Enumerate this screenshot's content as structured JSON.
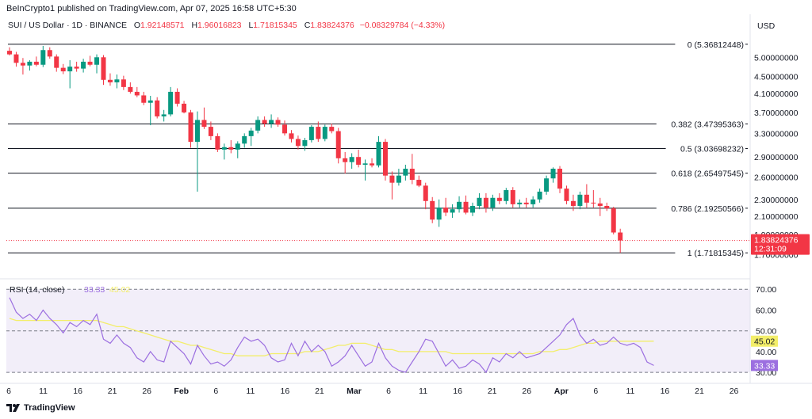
{
  "header": {
    "published_line": "BeInCrypto1 published on TradingView.com, Apr 07, 2025 16:58 UTC+5:30"
  },
  "legend": {
    "symbol": "SUI / US Dollar · 1D · BINANCE",
    "open_label": "O",
    "open": "1.92148571",
    "high_label": "H",
    "high": "1.96016823",
    "low_label": "L",
    "low": "1.71815345",
    "close_label": "C",
    "close": "1.83824376",
    "change": "−0.08329784 (−4.33%)"
  },
  "footer": {
    "brand": "TradingView"
  },
  "colors": {
    "up": "#089981",
    "down": "#F23645",
    "rsi_line": "#9C6FE0",
    "rsi_ma": "#F3EE6A",
    "rsi_band": "#EDE7F6",
    "fib_line": "#131722"
  },
  "chart_data": [
    {
      "type": "candlestick",
      "title": "SUI / US Dollar · 1D · BINANCE",
      "currency": "USD",
      "yscale": "log",
      "ylim": [
        1.55,
        5.75
      ],
      "y_ticks": [
        "5.00000000",
        "4.50000000",
        "4.10000000",
        "3.70000000",
        "3.30000000",
        "2.90000000",
        "2.60000000",
        "2.30000000",
        "2.10000000",
        "1.90000000",
        "1.70000000"
      ],
      "x_ticks": [
        "6",
        "11",
        "16",
        "21",
        "26",
        "Feb",
        "6",
        "11",
        "16",
        "21",
        "Mar",
        "6",
        "11",
        "16",
        "21",
        "26",
        "Apr",
        "6",
        "11",
        "16",
        "21",
        "26"
      ],
      "x_range": [
        "2025-01-06",
        "2025-04-26"
      ],
      "fib_levels": [
        {
          "ratio": 0,
          "price": 5.36812448,
          "label": "0 (5.36812448)"
        },
        {
          "ratio": 0.382,
          "price": 3.47395363,
          "label": "0.382 (3.47395363)"
        },
        {
          "ratio": 0.5,
          "price": 3.03698232,
          "label": "0.5 (3.03698232)"
        },
        {
          "ratio": 0.618,
          "price": 2.65497545,
          "label": "0.618 (2.65497545)"
        },
        {
          "ratio": 0.786,
          "price": 2.19250566,
          "label": "0.786 (2.19250566)"
        },
        {
          "ratio": 1,
          "price": 1.71815345,
          "label": "1 (1.71815345)"
        }
      ],
      "last_price": {
        "value": 1.83824376,
        "label": "1.83824376",
        "countdown": "12:31:09"
      },
      "candles": [
        {
          "date": "2025-01-06",
          "o": 5.18,
          "h": 5.28,
          "l": 5.05,
          "c": 5.08
        },
        {
          "date": "2025-01-07",
          "o": 5.08,
          "h": 5.15,
          "l": 4.75,
          "c": 4.85
        },
        {
          "date": "2025-01-08",
          "o": 4.85,
          "h": 4.98,
          "l": 4.55,
          "c": 4.78
        },
        {
          "date": "2025-01-09",
          "o": 4.78,
          "h": 4.92,
          "l": 4.65,
          "c": 4.88
        },
        {
          "date": "2025-01-10",
          "o": 4.88,
          "h": 5.02,
          "l": 4.76,
          "c": 4.8
        },
        {
          "date": "2025-01-11",
          "o": 4.8,
          "h": 5.32,
          "l": 4.74,
          "c": 5.2
        },
        {
          "date": "2025-01-12",
          "o": 5.2,
          "h": 5.28,
          "l": 4.96,
          "c": 5.02
        },
        {
          "date": "2025-01-13",
          "o": 5.02,
          "h": 5.08,
          "l": 4.62,
          "c": 4.72
        },
        {
          "date": "2025-01-14",
          "o": 4.72,
          "h": 4.82,
          "l": 4.56,
          "c": 4.63
        },
        {
          "date": "2025-01-15",
          "o": 4.63,
          "h": 4.92,
          "l": 4.22,
          "c": 4.75
        },
        {
          "date": "2025-01-16",
          "o": 4.75,
          "h": 4.88,
          "l": 4.62,
          "c": 4.7
        },
        {
          "date": "2025-01-17",
          "o": 4.7,
          "h": 4.96,
          "l": 4.6,
          "c": 4.88
        },
        {
          "date": "2025-01-18",
          "o": 4.88,
          "h": 5.04,
          "l": 4.76,
          "c": 4.8
        },
        {
          "date": "2025-01-19",
          "o": 4.8,
          "h": 5.08,
          "l": 4.58,
          "c": 5.0
        },
        {
          "date": "2025-01-20",
          "o": 5.0,
          "h": 5.06,
          "l": 4.3,
          "c": 4.42
        },
        {
          "date": "2025-01-21",
          "o": 4.42,
          "h": 4.58,
          "l": 4.28,
          "c": 4.36
        },
        {
          "date": "2025-01-22",
          "o": 4.36,
          "h": 4.55,
          "l": 4.22,
          "c": 4.43
        },
        {
          "date": "2025-01-23",
          "o": 4.43,
          "h": 4.52,
          "l": 4.18,
          "c": 4.25
        },
        {
          "date": "2025-01-24",
          "o": 4.25,
          "h": 4.36,
          "l": 4.1,
          "c": 4.14
        },
        {
          "date": "2025-01-25",
          "o": 4.14,
          "h": 4.25,
          "l": 4.02,
          "c": 4.06
        },
        {
          "date": "2025-01-26",
          "o": 4.06,
          "h": 4.14,
          "l": 3.85,
          "c": 3.9
        },
        {
          "date": "2025-01-27",
          "o": 3.9,
          "h": 4.05,
          "l": 3.45,
          "c": 3.95
        },
        {
          "date": "2025-01-28",
          "o": 3.95,
          "h": 4.02,
          "l": 3.58,
          "c": 3.62
        },
        {
          "date": "2025-01-29",
          "o": 3.62,
          "h": 3.75,
          "l": 3.52,
          "c": 3.66
        },
        {
          "date": "2025-01-30",
          "o": 3.66,
          "h": 4.25,
          "l": 3.62,
          "c": 4.14
        },
        {
          "date": "2025-01-31",
          "o": 4.14,
          "h": 4.22,
          "l": 3.82,
          "c": 3.88
        },
        {
          "date": "2025-02-01",
          "o": 3.88,
          "h": 3.94,
          "l": 3.68,
          "c": 3.7
        },
        {
          "date": "2025-02-02",
          "o": 3.7,
          "h": 3.75,
          "l": 3.05,
          "c": 3.15
        },
        {
          "date": "2025-02-03",
          "o": 3.15,
          "h": 3.72,
          "l": 2.4,
          "c": 3.55
        },
        {
          "date": "2025-02-04",
          "o": 3.55,
          "h": 3.8,
          "l": 3.38,
          "c": 3.42
        },
        {
          "date": "2025-02-05",
          "o": 3.42,
          "h": 3.52,
          "l": 3.18,
          "c": 3.25
        },
        {
          "date": "2025-02-06",
          "o": 3.25,
          "h": 3.3,
          "l": 2.98,
          "c": 3.02
        },
        {
          "date": "2025-02-07",
          "o": 3.02,
          "h": 3.12,
          "l": 2.86,
          "c": 3.06
        },
        {
          "date": "2025-02-08",
          "o": 3.06,
          "h": 3.18,
          "l": 2.96,
          "c": 3.02
        },
        {
          "date": "2025-02-09",
          "o": 3.02,
          "h": 3.16,
          "l": 2.88,
          "c": 3.12
        },
        {
          "date": "2025-02-10",
          "o": 3.12,
          "h": 3.3,
          "l": 3.05,
          "c": 3.25
        },
        {
          "date": "2025-02-11",
          "o": 3.25,
          "h": 3.4,
          "l": 3.08,
          "c": 3.35
        },
        {
          "date": "2025-02-12",
          "o": 3.35,
          "h": 3.62,
          "l": 3.3,
          "c": 3.55
        },
        {
          "date": "2025-02-13",
          "o": 3.55,
          "h": 3.62,
          "l": 3.42,
          "c": 3.48
        },
        {
          "date": "2025-02-14",
          "o": 3.48,
          "h": 3.66,
          "l": 3.4,
          "c": 3.55
        },
        {
          "date": "2025-02-15",
          "o": 3.55,
          "h": 3.6,
          "l": 3.42,
          "c": 3.46
        },
        {
          "date": "2025-02-16",
          "o": 3.46,
          "h": 3.54,
          "l": 3.26,
          "c": 3.3
        },
        {
          "date": "2025-02-17",
          "o": 3.3,
          "h": 3.36,
          "l": 3.14,
          "c": 3.2
        },
        {
          "date": "2025-02-18",
          "o": 3.2,
          "h": 3.26,
          "l": 3.02,
          "c": 3.08
        },
        {
          "date": "2025-02-19",
          "o": 3.08,
          "h": 3.22,
          "l": 3.0,
          "c": 3.18
        },
        {
          "date": "2025-02-20",
          "o": 3.18,
          "h": 3.45,
          "l": 3.14,
          "c": 3.42
        },
        {
          "date": "2025-02-21",
          "o": 3.42,
          "h": 3.52,
          "l": 3.15,
          "c": 3.2
        },
        {
          "date": "2025-02-22",
          "o": 3.2,
          "h": 3.46,
          "l": 3.16,
          "c": 3.42
        },
        {
          "date": "2025-02-23",
          "o": 3.42,
          "h": 3.48,
          "l": 3.3,
          "c": 3.34
        },
        {
          "date": "2025-02-24",
          "o": 3.34,
          "h": 3.4,
          "l": 2.8,
          "c": 2.88
        },
        {
          "date": "2025-02-25",
          "o": 2.88,
          "h": 2.98,
          "l": 2.65,
          "c": 2.82
        },
        {
          "date": "2025-02-26",
          "o": 2.82,
          "h": 2.96,
          "l": 2.72,
          "c": 2.9
        },
        {
          "date": "2025-02-27",
          "o": 2.9,
          "h": 3.02,
          "l": 2.74,
          "c": 2.78
        },
        {
          "date": "2025-02-28",
          "o": 2.78,
          "h": 2.86,
          "l": 2.55,
          "c": 2.8
        },
        {
          "date": "2025-03-01",
          "o": 2.8,
          "h": 2.88,
          "l": 2.74,
          "c": 2.77
        },
        {
          "date": "2025-03-02",
          "o": 2.77,
          "h": 3.25,
          "l": 2.74,
          "c": 3.15
        },
        {
          "date": "2025-03-03",
          "o": 3.15,
          "h": 3.2,
          "l": 2.55,
          "c": 2.62
        },
        {
          "date": "2025-03-04",
          "o": 2.62,
          "h": 2.68,
          "l": 2.3,
          "c": 2.52
        },
        {
          "date": "2025-03-05",
          "o": 2.52,
          "h": 2.72,
          "l": 2.48,
          "c": 2.62
        },
        {
          "date": "2025-03-06",
          "o": 2.62,
          "h": 2.78,
          "l": 2.55,
          "c": 2.72
        },
        {
          "date": "2025-03-07",
          "o": 2.72,
          "h": 2.95,
          "l": 2.5,
          "c": 2.56
        },
        {
          "date": "2025-03-08",
          "o": 2.56,
          "h": 2.62,
          "l": 2.46,
          "c": 2.48
        },
        {
          "date": "2025-03-09",
          "o": 2.48,
          "h": 2.52,
          "l": 2.18,
          "c": 2.28
        },
        {
          "date": "2025-03-10",
          "o": 2.28,
          "h": 2.33,
          "l": 2.02,
          "c": 2.06
        },
        {
          "date": "2025-03-11",
          "o": 2.06,
          "h": 2.3,
          "l": 1.98,
          "c": 2.2
        },
        {
          "date": "2025-03-12",
          "o": 2.2,
          "h": 2.32,
          "l": 2.1,
          "c": 2.14
        },
        {
          "date": "2025-03-13",
          "o": 2.14,
          "h": 2.24,
          "l": 2.08,
          "c": 2.18
        },
        {
          "date": "2025-03-14",
          "o": 2.18,
          "h": 2.34,
          "l": 2.14,
          "c": 2.27
        },
        {
          "date": "2025-03-15",
          "o": 2.27,
          "h": 2.35,
          "l": 2.12,
          "c": 2.14
        },
        {
          "date": "2025-03-16",
          "o": 2.14,
          "h": 2.26,
          "l": 2.1,
          "c": 2.22
        },
        {
          "date": "2025-03-17",
          "o": 2.22,
          "h": 2.38,
          "l": 2.18,
          "c": 2.32
        },
        {
          "date": "2025-03-18",
          "o": 2.32,
          "h": 2.38,
          "l": 2.14,
          "c": 2.2
        },
        {
          "date": "2025-03-19",
          "o": 2.2,
          "h": 2.36,
          "l": 2.16,
          "c": 2.32
        },
        {
          "date": "2025-03-20",
          "o": 2.32,
          "h": 2.38,
          "l": 2.24,
          "c": 2.28
        },
        {
          "date": "2025-03-21",
          "o": 2.28,
          "h": 2.45,
          "l": 2.24,
          "c": 2.42
        },
        {
          "date": "2025-03-22",
          "o": 2.42,
          "h": 2.46,
          "l": 2.2,
          "c": 2.24
        },
        {
          "date": "2025-03-23",
          "o": 2.24,
          "h": 2.3,
          "l": 2.2,
          "c": 2.26
        },
        {
          "date": "2025-03-24",
          "o": 2.26,
          "h": 2.32,
          "l": 2.2,
          "c": 2.24
        },
        {
          "date": "2025-03-25",
          "o": 2.24,
          "h": 2.34,
          "l": 2.2,
          "c": 2.3
        },
        {
          "date": "2025-03-26",
          "o": 2.3,
          "h": 2.44,
          "l": 2.26,
          "c": 2.4
        },
        {
          "date": "2025-03-27",
          "o": 2.4,
          "h": 2.62,
          "l": 2.36,
          "c": 2.58
        },
        {
          "date": "2025-03-28",
          "o": 2.58,
          "h": 2.74,
          "l": 2.52,
          "c": 2.72
        },
        {
          "date": "2025-03-29",
          "o": 2.72,
          "h": 2.76,
          "l": 2.38,
          "c": 2.44
        },
        {
          "date": "2025-03-30",
          "o": 2.44,
          "h": 2.48,
          "l": 2.24,
          "c": 2.28
        },
        {
          "date": "2025-03-31",
          "o": 2.28,
          "h": 2.36,
          "l": 2.16,
          "c": 2.22
        },
        {
          "date": "2025-04-01",
          "o": 2.22,
          "h": 2.4,
          "l": 2.18,
          "c": 2.36
        },
        {
          "date": "2025-04-02",
          "o": 2.36,
          "h": 2.5,
          "l": 2.2,
          "c": 2.26
        },
        {
          "date": "2025-04-03",
          "o": 2.26,
          "h": 2.42,
          "l": 2.2,
          "c": 2.25
        },
        {
          "date": "2025-04-04",
          "o": 2.25,
          "h": 2.32,
          "l": 2.1,
          "c": 2.22
        },
        {
          "date": "2025-04-05",
          "o": 2.22,
          "h": 2.26,
          "l": 2.16,
          "c": 2.19
        },
        {
          "date": "2025-04-06",
          "o": 2.19,
          "h": 2.21,
          "l": 1.9,
          "c": 1.92
        },
        {
          "date": "2025-04-07",
          "o": 1.92,
          "h": 1.96,
          "l": 1.71815345,
          "c": 1.83824376
        }
      ]
    },
    {
      "type": "line",
      "title": "RSI",
      "legend_label": "RSI (14, close)",
      "ylim": [
        27,
        72
      ],
      "y_ticks": [
        "70.00",
        "60.00",
        "50.00",
        "40.00",
        "30.00"
      ],
      "bands": [
        30,
        50,
        70
      ],
      "series": [
        {
          "name": "RSI",
          "last_label": "33.33",
          "values": [
            66,
            59,
            56,
            58,
            55,
            60,
            56,
            53,
            49,
            54,
            52,
            55,
            53,
            58,
            46,
            44,
            48,
            44,
            42,
            37,
            35,
            40,
            36,
            35,
            45,
            42,
            39,
            34,
            43,
            38,
            34,
            35,
            33,
            36,
            42,
            47,
            45,
            46,
            43,
            37,
            35,
            36,
            44,
            38,
            45,
            40,
            43,
            40,
            33,
            35,
            38,
            43,
            38,
            33,
            35,
            44,
            37,
            33,
            31,
            30,
            35,
            40,
            46,
            45,
            39,
            33,
            36,
            32,
            33,
            36,
            34,
            30,
            37,
            35,
            39,
            37,
            40,
            37,
            38,
            39,
            42,
            45,
            48,
            53,
            56,
            48,
            44,
            46,
            43,
            44,
            47,
            44,
            43,
            44,
            42,
            35,
            33.33
          ]
        },
        {
          "name": "RSI-based MA",
          "last_label": "45.02",
          "values": [
            56,
            55,
            55,
            55,
            55,
            55,
            55,
            55,
            55,
            55,
            55,
            55,
            55,
            55,
            54,
            53,
            52,
            52,
            51,
            50,
            49,
            48,
            47,
            46,
            45,
            45,
            44,
            43,
            43,
            42,
            41,
            40,
            39,
            39,
            38,
            38,
            38,
            38,
            38,
            39,
            39,
            39,
            39,
            39,
            40,
            40,
            40,
            41,
            42,
            43,
            43,
            44,
            44,
            44,
            43,
            42,
            41,
            41,
            40,
            40,
            40,
            40,
            40,
            40,
            40,
            40,
            39,
            39,
            39,
            39,
            39,
            39,
            39,
            39,
            39,
            39,
            39,
            39,
            39,
            40,
            40,
            40,
            41,
            41,
            42,
            43,
            44,
            44,
            45,
            45,
            45,
            45,
            45,
            45,
            45,
            45,
            45.02
          ]
        }
      ]
    }
  ]
}
